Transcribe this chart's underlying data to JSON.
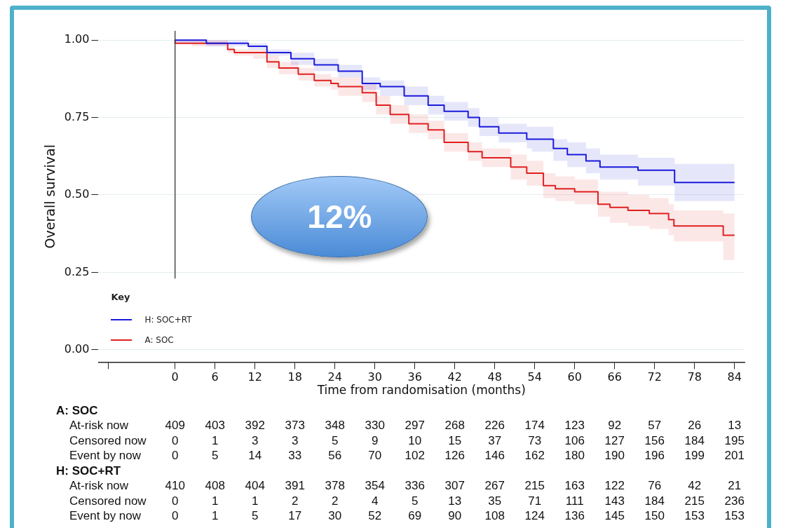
{
  "chart_data": {
    "type": "step",
    "xlabel": "Time from randomisation (months)",
    "ylabel": "Overall survival",
    "legend_title": "Key",
    "legend": "bottom left",
    "grid": "y",
    "xlim": [
      -11.5,
      85.5
    ],
    "xticks": [
      {
        "value": -10,
        "label": null
      },
      0,
      6,
      12,
      18,
      24,
      30,
      36,
      42,
      48,
      54,
      60,
      66,
      72,
      78,
      84
    ],
    "ylim": [
      -0.04,
      1.03
    ],
    "yticks": [
      {
        "value": 0,
        "label": "0.00"
      },
      {
        "value": 0.25,
        "label": "0.25"
      },
      {
        "value": 0.5,
        "label": "0.50"
      },
      {
        "value": 0.75,
        "label": "0.75"
      },
      {
        "value": 1,
        "label": "1.00"
      }
    ],
    "ref_lines": [
      {
        "axis": "x",
        "value": 0,
        "color": "#333333"
      }
    ],
    "series": [
      {
        "name": "H: SOC+RT",
        "color": "#1a1adb",
        "x": [
          0,
          4.7,
          11,
          13.8,
          17.4,
          20.9,
          24.5,
          28.1,
          30.8,
          34.4,
          38,
          40.4,
          44,
          45.7,
          48.6,
          52.8,
          53.6,
          56.8,
          58.9,
          61.7,
          63.8,
          66.3,
          69.5,
          71.2,
          75,
          75.9,
          84
        ],
        "values": [
          1.0,
          1.0,
          0.99,
          0.98,
          0.96,
          0.94,
          0.92,
          0.9,
          0.86,
          0.85,
          0.82,
          0.79,
          0.77,
          0.75,
          0.72,
          0.7,
          0.68,
          0.68,
          0.65,
          0.63,
          0.61,
          0.59,
          0.59,
          0.58,
          0.58,
          0.54,
          0.54
        ],
        "lower": [
          1.0,
          0.99,
          0.98,
          0.97,
          0.95,
          0.92,
          0.9,
          0.88,
          0.84,
          0.82,
          0.79,
          0.76,
          0.74,
          0.72,
          0.69,
          0.67,
          0.65,
          0.64,
          0.61,
          0.59,
          0.57,
          0.55,
          0.55,
          0.53,
          0.53,
          0.48,
          0.48
        ],
        "upper": [
          1.0,
          1.0,
          1.0,
          0.99,
          0.97,
          0.96,
          0.94,
          0.92,
          0.88,
          0.87,
          0.85,
          0.82,
          0.8,
          0.78,
          0.75,
          0.73,
          0.72,
          0.72,
          0.68,
          0.67,
          0.65,
          0.63,
          0.63,
          0.62,
          0.62,
          0.6,
          0.6
        ]
      },
      {
        "name": "A: SOC",
        "color": "#e02020",
        "x": [
          0,
          2.5,
          7.9,
          8.9,
          11.7,
          13.8,
          15.6,
          18.5,
          20.9,
          23.4,
          24.5,
          28.1,
          30.2,
          32.3,
          35.1,
          38,
          40.4,
          44,
          46.1,
          50.4,
          52.8,
          55.3,
          57.1,
          60,
          63.5,
          65.3,
          68,
          71.2,
          72.3,
          74.1,
          74.9,
          77.3,
          82.3,
          82.4,
          84
        ],
        "values": [
          1.0,
          0.99,
          0.99,
          0.97,
          0.96,
          0.96,
          0.93,
          0.91,
          0.89,
          0.87,
          0.86,
          0.85,
          0.83,
          0.79,
          0.76,
          0.73,
          0.71,
          0.67,
          0.64,
          0.62,
          0.59,
          0.57,
          0.53,
          0.52,
          0.51,
          0.47,
          0.46,
          0.45,
          0.44,
          0.44,
          0.42,
          0.4,
          0.4,
          0.37,
          0.37
        ],
        "lower": [
          1.0,
          0.99,
          0.98,
          0.96,
          0.95,
          0.94,
          0.91,
          0.89,
          0.87,
          0.85,
          0.84,
          0.82,
          0.8,
          0.76,
          0.73,
          0.7,
          0.68,
          0.64,
          0.61,
          0.59,
          0.55,
          0.53,
          0.49,
          0.48,
          0.47,
          0.43,
          0.41,
          0.4,
          0.39,
          0.39,
          0.37,
          0.35,
          0.35,
          0.29,
          0.29
        ],
        "upper": [
          1.0,
          1.0,
          1.0,
          0.98,
          0.97,
          0.97,
          0.95,
          0.93,
          0.91,
          0.89,
          0.88,
          0.88,
          0.86,
          0.82,
          0.79,
          0.76,
          0.74,
          0.7,
          0.67,
          0.65,
          0.63,
          0.61,
          0.57,
          0.56,
          0.55,
          0.51,
          0.51,
          0.5,
          0.49,
          0.49,
          0.47,
          0.45,
          0.45,
          0.44,
          0.44
        ]
      }
    ],
    "annotations": [
      "12%",
      "A: SOC",
      "At-risk now",
      "409",
      "403",
      "392",
      "373",
      "348",
      "330",
      "297",
      "268",
      "226",
      "174",
      "123",
      "92",
      "57",
      "26",
      "13",
      "Censored now",
      "0",
      "1",
      "3",
      "3",
      "5",
      "9",
      "10",
      "15",
      "37",
      "73",
      "106",
      "127",
      "156",
      "184",
      "195",
      "Event by now",
      "0",
      "5",
      "14",
      "33",
      "56",
      "70",
      "102",
      "126",
      "146",
      "162",
      "180",
      "190",
      "196",
      "199",
      "201",
      "H: SOC+RT",
      "At-risk now",
      "410",
      "408",
      "404",
      "391",
      "378",
      "354",
      "336",
      "307",
      "267",
      "215",
      "163",
      "122",
      "76",
      "42",
      "21",
      "Censored now",
      "0",
      "1",
      "1",
      "2",
      "2",
      "4",
      "5",
      "13",
      "35",
      "71",
      "111",
      "143",
      "184",
      "215",
      "236",
      "Event by now",
      "0",
      "1",
      "5",
      "17",
      "30",
      "52",
      "69",
      "90",
      "108",
      "124",
      "136",
      "145",
      "150",
      "153",
      "153"
    ]
  }
}
